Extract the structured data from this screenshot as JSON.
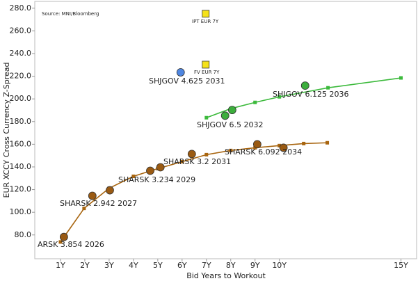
{
  "chart_data": {
    "type": "scatter",
    "source": "Source: MNI/Bloomberg",
    "x_label": "Bid Years to Workout",
    "y_label": "EUR XCCY Cross Currency Z-Spread",
    "xlim": [
      0,
      15.7
    ],
    "ylim": [
      59,
      286
    ],
    "xticks": [
      {
        "value": 1,
        "label": "1Y"
      },
      {
        "value": 2,
        "label": "2Y"
      },
      {
        "value": 3,
        "label": "3Y"
      },
      {
        "value": 4,
        "label": "4Y"
      },
      {
        "value": 5,
        "label": "5Y"
      },
      {
        "value": 6,
        "label": "6Y"
      },
      {
        "value": 7,
        "label": "7Y"
      },
      {
        "value": 8,
        "label": "8Y"
      },
      {
        "value": 9,
        "label": "9Y"
      },
      {
        "value": 10,
        "label": "10Y"
      },
      {
        "value": 15,
        "label": "15Y"
      }
    ],
    "yticks": [
      {
        "value": 80,
        "label": "80.0"
      },
      {
        "value": 100,
        "label": "100.0"
      },
      {
        "value": 120,
        "label": "120.0"
      },
      {
        "value": 140,
        "label": "140.0"
      },
      {
        "value": 160,
        "label": "160.0"
      },
      {
        "value": 180,
        "label": "180.0"
      },
      {
        "value": 200,
        "label": "200.0"
      },
      {
        "value": 220,
        "label": "220.0"
      },
      {
        "value": 240,
        "label": "240.0"
      },
      {
        "value": 260,
        "label": "260.0"
      },
      {
        "value": 280,
        "label": "280.0"
      }
    ],
    "series": [
      {
        "mode": "line",
        "color": "#a8650f",
        "x": [
          1,
          1.97,
          3,
          4,
          5,
          6,
          7,
          8,
          9,
          10,
          11,
          11.97
        ],
        "values": [
          73.8,
          103.4,
          121.2,
          131.7,
          138.5,
          144.6,
          150.8,
          154.5,
          156.9,
          158.8,
          160.6,
          161.3
        ]
      },
      {
        "mode": "line",
        "color": "#3cba3c",
        "x": [
          7,
          8,
          9,
          10,
          12,
          15
        ],
        "values": [
          183.4,
          191.4,
          196.9,
          201.8,
          209.8,
          218.5
        ]
      },
      {
        "mode": "circle",
        "color": "#9a5a12",
        "x": [
          1.14,
          2.31,
          3.03,
          4.69,
          5.11,
          6.4,
          9.09,
          10.17
        ],
        "values": [
          78.2,
          114.5,
          119.4,
          136.6,
          139.7,
          151.4,
          160,
          156.9
        ]
      },
      {
        "mode": "circle",
        "color": "#3cae3c",
        "x": [
          7.77,
          8.06,
          11.06
        ],
        "values": [
          185.2,
          190.2,
          211.7
        ]
      },
      {
        "mode": "circle",
        "color": "#4f86e0",
        "x": [
          5.94
        ],
        "values": [
          223.4
        ]
      },
      {
        "mode": "square",
        "color": "#f5e21a",
        "x": [
          6.97,
          6.97
        ],
        "values": [
          275.1,
          230.2
        ]
      }
    ],
    "annotations": [
      "ARSK 3.854 2026",
      "SHARSK 2.942 2027",
      "SHARSK 3.234 2029",
      "SHARSK 3.2 2031",
      "SHARSK 6.092 2034",
      "SHJGOV 6.5 2032",
      "SHJGOV 6.125 2036",
      "SHJGOV 4.625 2031",
      "IPT EUR 7Y",
      "FV EUR 7Y"
    ]
  }
}
